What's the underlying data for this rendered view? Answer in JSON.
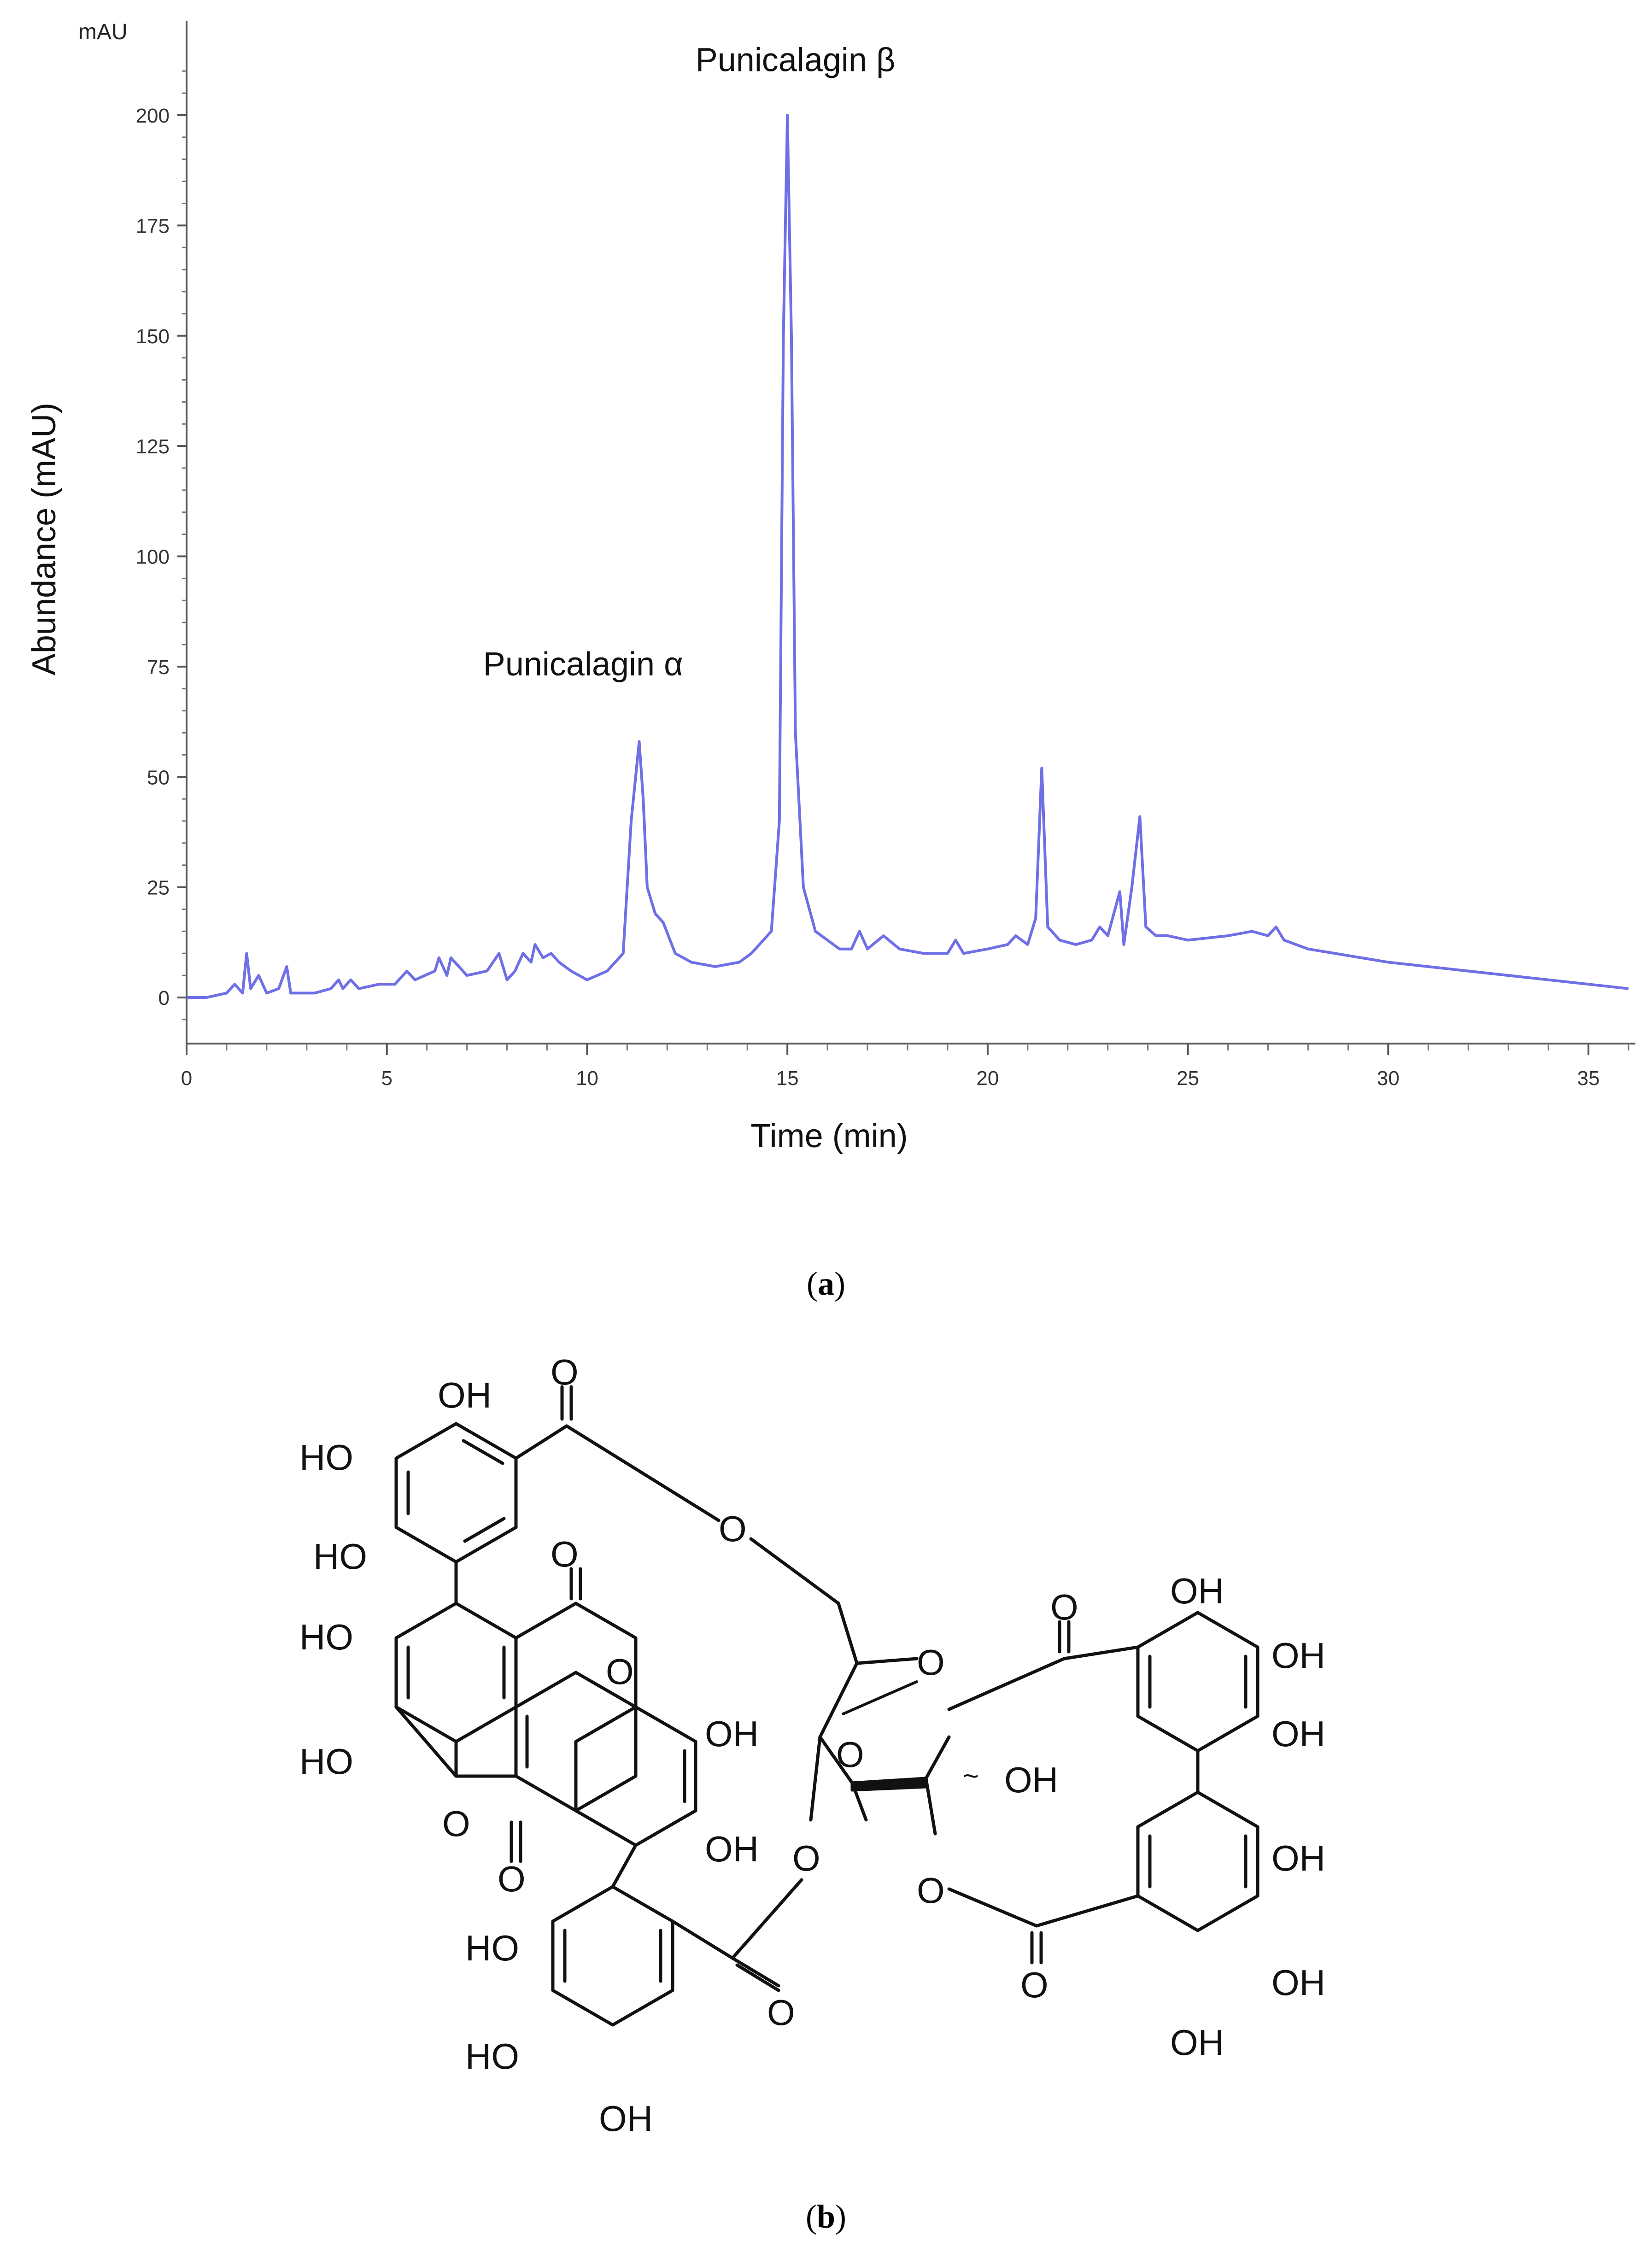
{
  "chart_data": {
    "type": "line",
    "title": "",
    "unit_label": "mAU",
    "xlabel": "Time (min)",
    "ylabel": "Abundance (mAU)",
    "xlim": [
      0,
      36
    ],
    "ylim": [
      -10,
      215
    ],
    "xticks": [
      0,
      5,
      10,
      15,
      20,
      25,
      30,
      35
    ],
    "xtick_labels": [
      "0",
      "5",
      "10",
      "15",
      "20",
      "25",
      "30",
      "35"
    ],
    "yticks": [
      0,
      25,
      50,
      75,
      100,
      125,
      150,
      175,
      200
    ],
    "ytick_labels": [
      "0",
      "25",
      "50",
      "75",
      "100",
      "125",
      "150",
      "175",
      "200"
    ],
    "grid": false,
    "line_color": "#6f6fe6",
    "annotations": [
      {
        "text": "Punicalagin α",
        "x": 9.9,
        "y": 73,
        "name": "punicalagin-alpha-annotation"
      },
      {
        "text": "Punicalagin β",
        "x": 15.2,
        "y": 210,
        "name": "punicalagin-beta-annotation"
      }
    ],
    "series": [
      {
        "name": "",
        "x": [
          0,
          0.5,
          1.0,
          1.2,
          1.4,
          1.5,
          1.6,
          1.8,
          1.9,
          2.0,
          2.3,
          2.5,
          2.6,
          2.8,
          3.2,
          3.6,
          3.8,
          3.9,
          4.1,
          4.3,
          4.8,
          5.2,
          5.5,
          5.7,
          6.2,
          6.3,
          6.5,
          6.6,
          7.0,
          7.5,
          7.8,
          8.0,
          8.2,
          8.4,
          8.6,
          8.7,
          8.9,
          9.1,
          9.3,
          9.6,
          10.0,
          10.5,
          10.9,
          11.1,
          11.3,
          11.4,
          11.5,
          11.7,
          11.9,
          12.2,
          12.6,
          13.2,
          13.8,
          14.1,
          14.3,
          14.6,
          14.8,
          14.9,
          15.0,
          15.1,
          15.2,
          15.4,
          15.7,
          16.0,
          16.3,
          16.6,
          16.8,
          17.0,
          17.4,
          17.8,
          18.4,
          19.0,
          19.2,
          19.4,
          20.0,
          20.5,
          20.7,
          21.0,
          21.2,
          21.35,
          21.5,
          21.8,
          22.2,
          22.6,
          22.8,
          23.0,
          23.3,
          23.4,
          23.6,
          23.8,
          23.95,
          24.2,
          24.5,
          25.0,
          26.0,
          26.6,
          27.0,
          27.2,
          27.4,
          28.0,
          30.0,
          32.0,
          34.0,
          36.0
        ],
        "y": [
          0,
          0,
          1,
          3,
          1,
          10,
          2,
          5,
          3,
          1,
          2,
          7,
          1,
          1,
          1,
          2,
          4,
          2,
          4,
          2,
          3,
          3,
          6,
          4,
          6,
          9,
          5,
          9,
          5,
          6,
          10,
          4,
          6,
          10,
          8,
          12,
          9,
          10,
          8,
          6,
          4,
          6,
          10,
          40,
          58,
          45,
          25,
          19,
          17,
          10,
          8,
          7,
          8,
          10,
          12,
          15,
          40,
          150,
          200,
          150,
          60,
          25,
          15,
          13,
          11,
          11,
          15,
          11,
          14,
          11,
          10,
          10,
          13,
          10,
          11,
          12,
          14,
          12,
          18,
          52,
          16,
          13,
          12,
          13,
          16,
          14,
          24,
          12,
          25,
          41,
          16,
          14,
          14,
          13,
          14,
          15,
          14,
          16,
          13,
          11,
          8,
          6,
          4,
          2
        ]
      }
    ]
  },
  "figure_b": {
    "oh": "OH",
    "ho": "HO",
    "o": "O",
    "h": "H"
  },
  "panel_labels": {
    "a": {
      "open": "(",
      "letter": "a",
      "close": ")"
    },
    "b": {
      "open": "(",
      "letter": "b",
      "close": ")"
    }
  }
}
